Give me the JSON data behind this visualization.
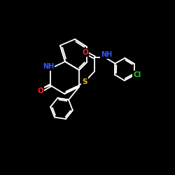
{
  "bg_color": "#000000",
  "fig_width": 2.5,
  "fig_height": 2.5,
  "dpi": 100,
  "white": [
    1.0,
    1.0,
    1.0
  ],
  "blue": [
    0.2,
    0.4,
    1.0
  ],
  "red": [
    1.0,
    0.1,
    0.1
  ],
  "yellow": [
    1.0,
    0.75,
    0.0
  ],
  "green": [
    0.1,
    0.85,
    0.1
  ],
  "lw": 1.2,
  "fs": 7.5
}
